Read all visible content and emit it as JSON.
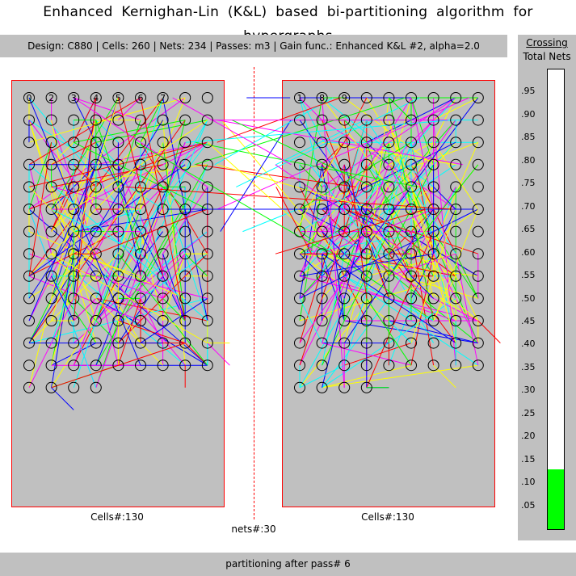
{
  "title": "Enhanced Kernighan-Lin (K&L) based bi-partitioning algorithm for hypergraphs",
  "info_bar": "Design: C880  |  Cells: 260  |  Nets: 234  |  Passes: m3  |  Gain func.: Enhanced K&L #2, alpha=2.0",
  "partitions": {
    "left_label": "Cells#:130",
    "right_label": "Cells#:130",
    "left_visible_cell_numbers": [
      "0",
      "2",
      "3",
      "4",
      "5",
      "6",
      "7"
    ],
    "right_visible_cell_numbers": [
      "1",
      "8",
      "9"
    ]
  },
  "nets_label": "nets#:30",
  "footer": "partitioning after pass# 6",
  "gauge": {
    "title_line1": "Crossing",
    "title_line2": "Total Nets",
    "ticks": [
      ".95",
      ".90",
      ".85",
      ".80",
      ".75",
      ".70",
      ".65",
      ".60",
      ".55",
      ".50",
      ".45",
      ".40",
      ".35",
      ".30",
      ".25",
      ".20",
      ".15",
      ".10",
      ".05"
    ],
    "fill_fraction": 0.13,
    "fill_color": "#00ff00"
  },
  "colors": {
    "panel_bg": "#c0c0c0",
    "panel_border": "#ff0000",
    "net_colors": [
      "#0000ff",
      "#ff0000",
      "#00ff00",
      "#ffff00",
      "#00ffff",
      "#ff00ff",
      "#008000",
      "#000080"
    ]
  }
}
